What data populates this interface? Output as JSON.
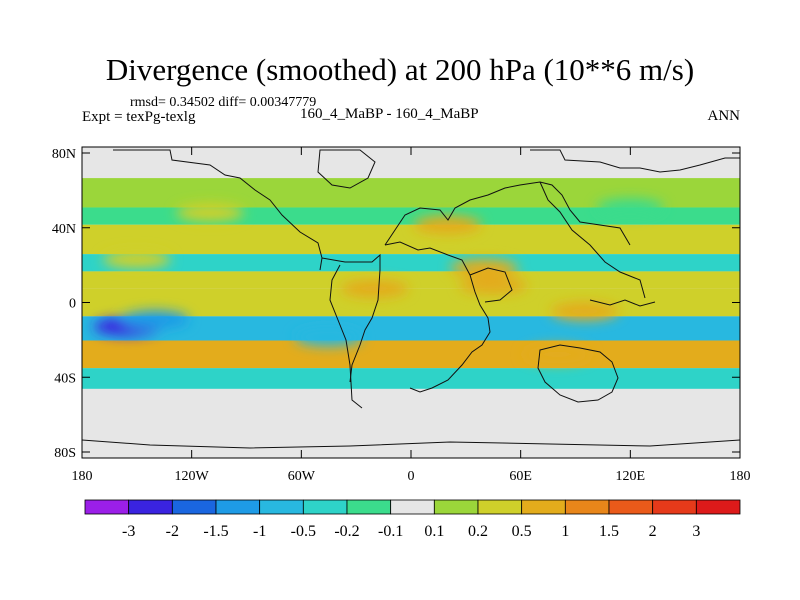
{
  "chart_data": {
    "type": "heatmap",
    "title": "Divergence (smoothed) at 200 hPa (10**6 m/s)",
    "stats": "rmsd= 0.34502 diff= 0.00347779",
    "experiment": "Expt = texPg-texlg",
    "comparison": "160_4_MaBP - 160_4_MaBP",
    "season": "ANN",
    "x_ticks": [
      "180",
      "120W",
      "60W",
      "0",
      "60E",
      "120E",
      "180"
    ],
    "y_ticks": [
      "80N",
      "40N",
      "0",
      "40S",
      "80S"
    ],
    "xlim": [
      -180,
      180
    ],
    "ylim": [
      -90,
      90
    ],
    "colorbar": {
      "labels": [
        "-3",
        "-2",
        "-1.5",
        "-1",
        "-0.5",
        "-0.2",
        "-0.1",
        "0.1",
        "0.2",
        "0.5",
        "1",
        "1.5",
        "2",
        "3"
      ],
      "colors": [
        "#9b1fe8",
        "#3a23e0",
        "#1a66e0",
        "#1e9be6",
        "#28b8e0",
        "#2ed3c8",
        "#3bdc8c",
        "#e6e6e6",
        "#9bd63a",
        "#cfd02a",
        "#e3ac1c",
        "#e8861a",
        "#ea5a1a",
        "#e63a1a",
        "#dd1a1a"
      ]
    },
    "bands": [
      {
        "lat_min": 72,
        "lat_max": 90,
        "level": 0
      },
      {
        "lat_min": 55,
        "lat_max": 72,
        "level": 0.15
      },
      {
        "lat_min": 45,
        "lat_max": 55,
        "level": -0.15
      },
      {
        "lat_min": 28,
        "lat_max": 45,
        "level": 0.3
      },
      {
        "lat_min": 18,
        "lat_max": 28,
        "level": -0.3
      },
      {
        "lat_min": 8,
        "lat_max": 18,
        "level": 0.25
      },
      {
        "lat_min": -8,
        "lat_max": 8,
        "level": 0.4
      },
      {
        "lat_min": -22,
        "lat_max": -8,
        "level": -0.7
      },
      {
        "lat_min": -38,
        "lat_max": -22,
        "level": 0.5
      },
      {
        "lat_min": -50,
        "lat_max": -38,
        "level": -0.3
      },
      {
        "lat_min": -90,
        "lat_max": -50,
        "level": 0
      }
    ],
    "blobs": [
      {
        "lon": -155,
        "lat": -14,
        "level": -2.2
      },
      {
        "lon": -140,
        "lat": -10,
        "level": -1.2
      },
      {
        "lon": -110,
        "lat": 52,
        "level": 0.3
      },
      {
        "lon": -20,
        "lat": 8,
        "level": 0.6
      },
      {
        "lon": 45,
        "lat": 10,
        "level": 0.9
      },
      {
        "lon": 40,
        "lat": 20,
        "level": 0.6
      },
      {
        "lon": 95,
        "lat": -5,
        "level": 0.8
      },
      {
        "lon": 20,
        "lat": 45,
        "level": 0.5
      },
      {
        "lon": -150,
        "lat": 25,
        "level": 0.4
      },
      {
        "lon": 80,
        "lat": -30,
        "level": 0.7
      },
      {
        "lon": -45,
        "lat": -20,
        "level": -0.6
      },
      {
        "lon": 120,
        "lat": 55,
        "level": -0.2
      }
    ]
  }
}
